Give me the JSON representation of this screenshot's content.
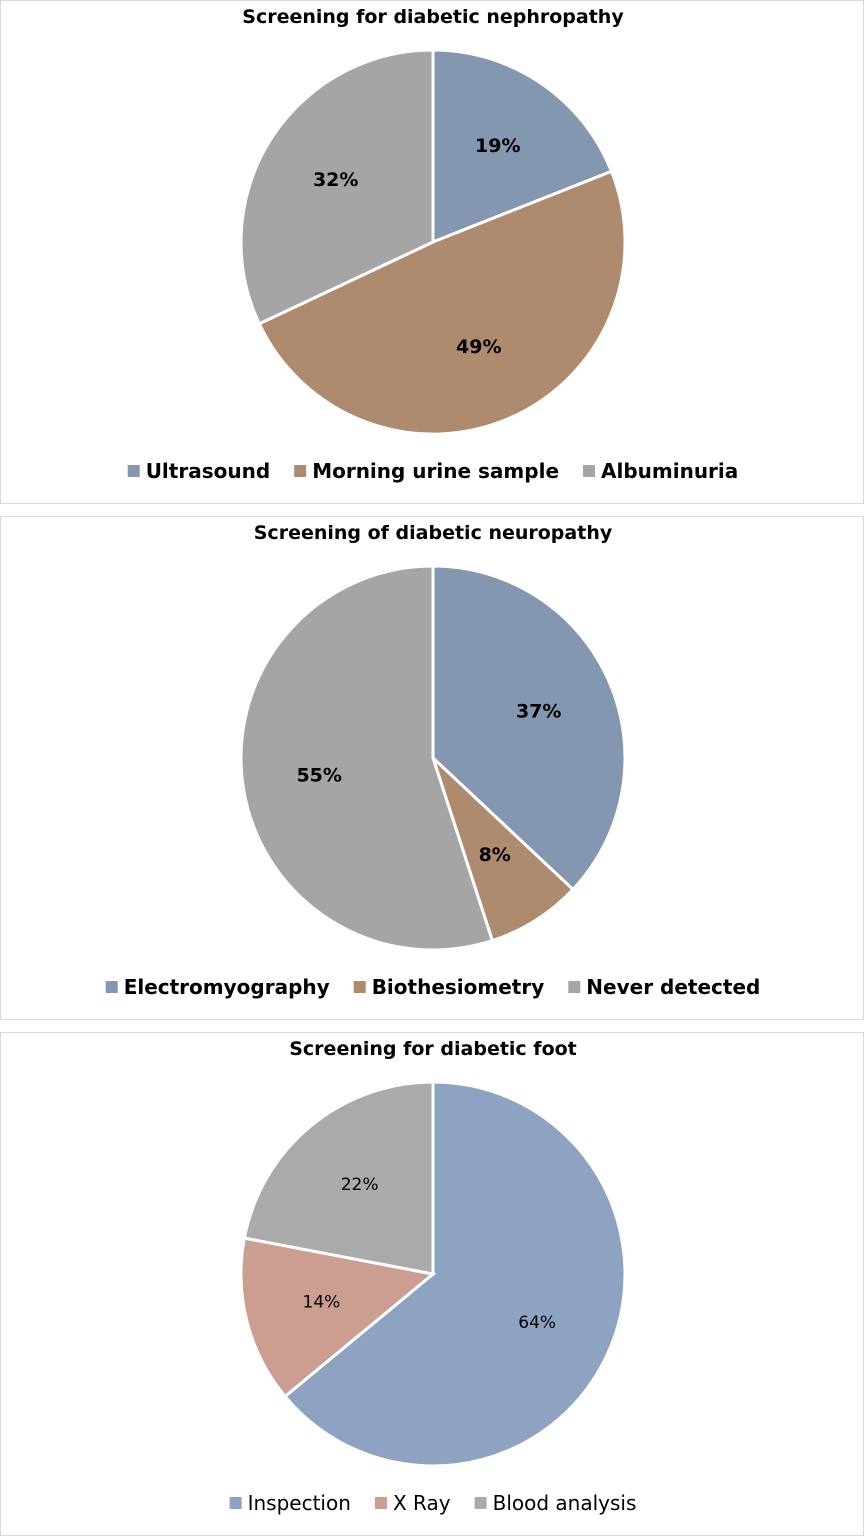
{
  "chart_data": [
    {
      "type": "pie",
      "title": "Screening for diabetic nephropathy",
      "categories": [
        "Ultrasound",
        "Morning urine sample",
        "Albuminuria"
      ],
      "values": [
        19,
        49,
        32
      ],
      "labels": [
        "19%",
        "49%",
        "32%"
      ],
      "colors": [
        "#8497b0",
        "#ae8a6f",
        "#a5a5a5"
      ],
      "legend": "bottom"
    },
    {
      "type": "pie",
      "title": "Screening of diabetic neuropathy",
      "categories": [
        "Electromyography",
        "Biothesiometry",
        "Never detected"
      ],
      "values": [
        37,
        8,
        55
      ],
      "labels": [
        "37%",
        "8%",
        "55%"
      ],
      "colors": [
        "#8497b0",
        "#ae8a6f",
        "#a5a5a5"
      ],
      "legend": "bottom"
    },
    {
      "type": "pie",
      "title": "Screening for diabetic foot",
      "categories": [
        "Inspection",
        "X Ray",
        "Blood analysis"
      ],
      "values": [
        64,
        14,
        22
      ],
      "labels": [
        "64%",
        "14%",
        "22%"
      ],
      "colors": [
        "#8ea3c2",
        "#cc9e91",
        "#aaaaaa"
      ],
      "legend": "bottom"
    }
  ]
}
